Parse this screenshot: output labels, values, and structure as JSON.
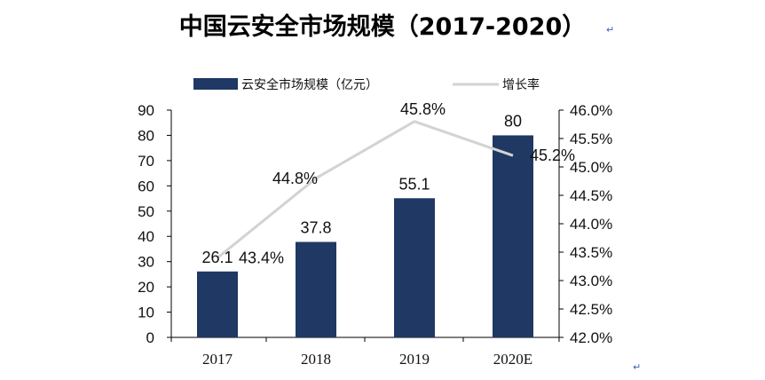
{
  "page": {
    "title": "中国云安全市场规模（2017-2020）",
    "return_mark": "↵"
  },
  "chart_data": {
    "type": "bar+line",
    "title": "中国云安全市场规模（2017-2020）",
    "categories": [
      "2017",
      "2018",
      "2019",
      "2020E"
    ],
    "series": [
      {
        "name": "云安全市场规模（亿元）",
        "type": "bar",
        "axis": "left",
        "values": [
          26.1,
          37.8,
          55.1,
          80
        ],
        "labels": [
          "26.1",
          "37.8",
          "55.1",
          "80"
        ],
        "color": "#1f3864"
      },
      {
        "name": "增长率",
        "type": "line",
        "axis": "right",
        "values": [
          43.4,
          44.8,
          45.8,
          45.2
        ],
        "labels": [
          "43.4%",
          "44.8%",
          "45.8%",
          "45.2%"
        ],
        "color": "#d3d3d3"
      }
    ],
    "left_axis": {
      "min": 0,
      "max": 90,
      "ticks": [
        "0",
        "10",
        "20",
        "30",
        "40",
        "50",
        "60",
        "70",
        "80",
        "90"
      ]
    },
    "right_axis": {
      "min": 42.0,
      "max": 46.0,
      "ticks": [
        "42.0%",
        "42.5%",
        "43.0%",
        "43.5%",
        "44.0%",
        "44.5%",
        "45.0%",
        "45.5%",
        "46.0%"
      ]
    },
    "legend_position": "top",
    "grid": false
  }
}
